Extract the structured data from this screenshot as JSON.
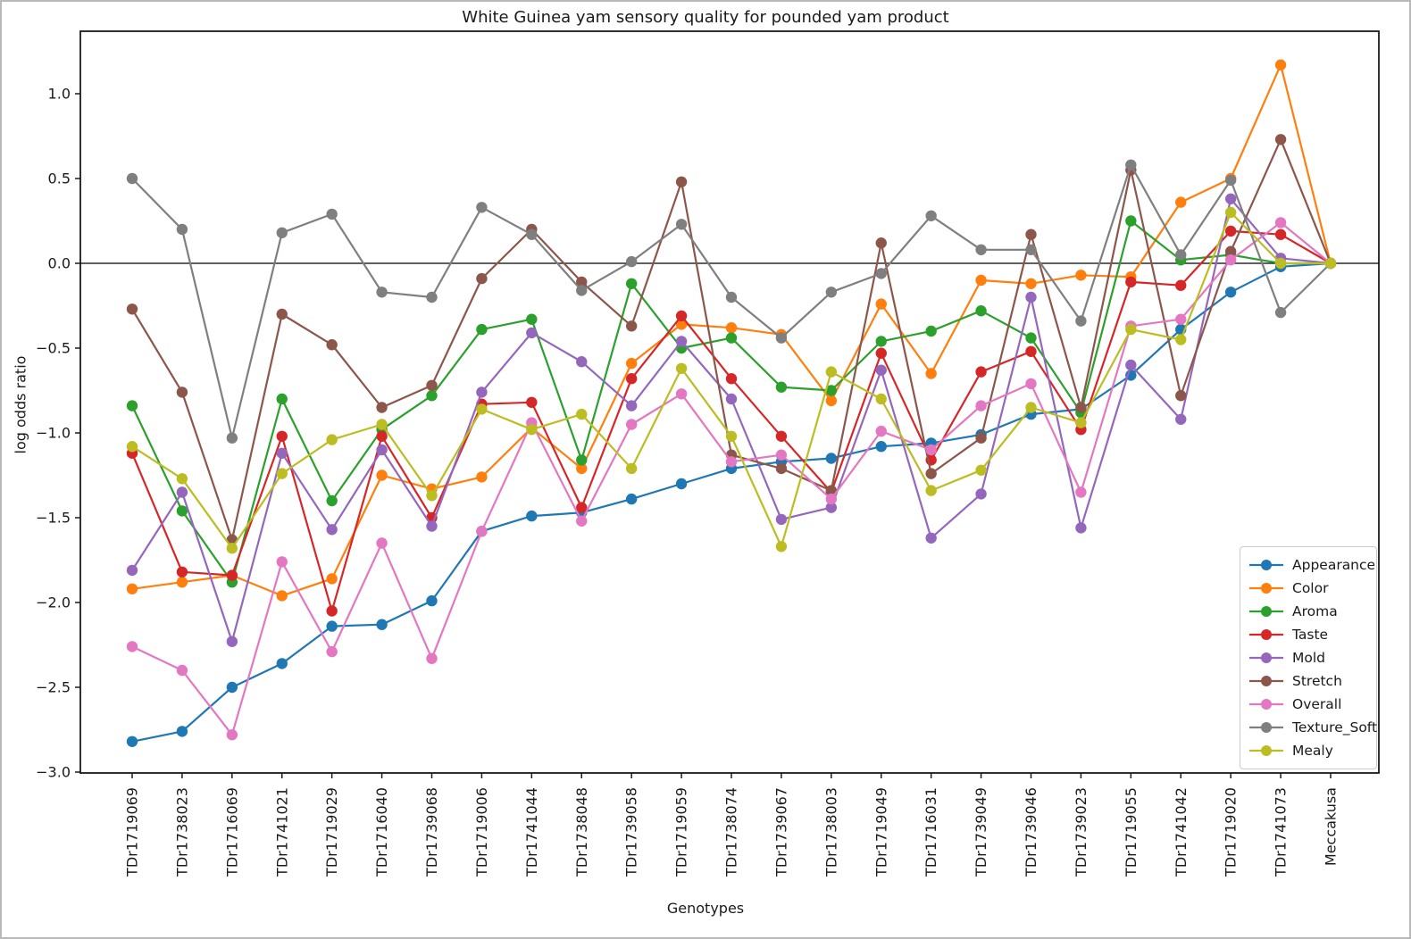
{
  "chart_data": {
    "type": "line",
    "title": "White Guinea yam sensory quality for pounded yam product",
    "xlabel": "Genotypes",
    "ylabel": "log odds ratio",
    "ylim": [
      -3.0,
      1.37
    ],
    "grid": false,
    "zero_line": true,
    "legend_position": "lower right",
    "ytick_labels": [
      "1.0",
      "0.5",
      "0.0",
      "−0.5",
      "−1.0",
      "−1.5",
      "−2.0",
      "−2.5",
      "−3.0"
    ],
    "yticks": [
      1.0,
      0.5,
      0.0,
      -0.5,
      -1.0,
      -1.5,
      -2.0,
      -2.5,
      -3.0
    ],
    "categories": [
      "TDr1719069",
      "TDr1738023",
      "TDr1716069",
      "TDr1741021",
      "TDr1719029",
      "TDr1716040",
      "TDr1739068",
      "TDr1719006",
      "TDr1741044",
      "TDr1738048",
      "TDr1739058",
      "TDr1719059",
      "TDr1738074",
      "TDr1739067",
      "TDr1738003",
      "TDr1719049",
      "TDr1716031",
      "TDr1739049",
      "TDr1739046",
      "TDr1739023",
      "TDr1719055",
      "TDr1741042",
      "TDr1719020",
      "TDr1741073",
      "Meccakusa"
    ],
    "series": [
      {
        "name": "Appearance",
        "color": "#1f77b4",
        "values": [
          -2.82,
          -2.76,
          -2.5,
          -2.36,
          -2.14,
          -2.13,
          -1.99,
          -1.58,
          -1.49,
          -1.47,
          -1.39,
          -1.3,
          -1.21,
          -1.17,
          -1.15,
          -1.08,
          -1.06,
          -1.01,
          -0.89,
          -0.86,
          -0.66,
          -0.39,
          -0.17,
          -0.02,
          0.0
        ]
      },
      {
        "name": "Color",
        "color": "#ff7f0e",
        "values": [
          -1.92,
          -1.88,
          -1.84,
          -1.96,
          -1.86,
          -1.25,
          -1.33,
          -1.26,
          -0.97,
          -1.21,
          -0.59,
          -0.36,
          -0.38,
          -0.42,
          -0.81,
          -0.24,
          -0.65,
          -0.1,
          -0.12,
          -0.07,
          -0.08,
          0.36,
          0.5,
          1.17,
          0.0
        ]
      },
      {
        "name": "Aroma",
        "color": "#2ca02c",
        "values": [
          -0.84,
          -1.46,
          -1.88,
          -0.8,
          -1.4,
          -0.98,
          -0.78,
          -0.39,
          -0.33,
          -1.16,
          -0.12,
          -0.5,
          -0.44,
          -0.73,
          -0.75,
          -0.46,
          -0.4,
          -0.28,
          -0.44,
          -0.88,
          0.25,
          0.02,
          0.05,
          0.0,
          0.0
        ]
      },
      {
        "name": "Taste",
        "color": "#d62728",
        "values": [
          -1.12,
          -1.82,
          -1.84,
          -1.02,
          -2.05,
          -1.02,
          -1.5,
          -0.83,
          -0.82,
          -1.44,
          -0.68,
          -0.31,
          -0.68,
          -1.02,
          -1.35,
          -0.53,
          -1.16,
          -0.64,
          -0.52,
          -0.98,
          -0.11,
          -0.13,
          0.19,
          0.17,
          0.0
        ]
      },
      {
        "name": "Mold",
        "color": "#9467bd",
        "values": [
          -1.81,
          -1.35,
          -2.23,
          -1.12,
          -1.57,
          -1.1,
          -1.55,
          -0.76,
          -0.41,
          -0.58,
          -0.84,
          -0.46,
          -0.8,
          -1.51,
          -1.44,
          -0.63,
          -1.62,
          -1.36,
          -0.2,
          -1.56,
          -0.6,
          -0.92,
          0.38,
          0.03,
          0.0
        ]
      },
      {
        "name": "Stretch",
        "color": "#8c564b",
        "values": [
          -0.27,
          -0.76,
          -1.63,
          -0.3,
          -0.48,
          -0.85,
          -0.72,
          -0.09,
          0.2,
          -0.11,
          -0.37,
          0.48,
          -1.13,
          -1.21,
          -1.34,
          0.12,
          -1.24,
          -1.03,
          0.17,
          -0.85,
          0.55,
          -0.78,
          0.07,
          0.73,
          0.0
        ]
      },
      {
        "name": "Overall",
        "color": "#e377c2",
        "values": [
          -2.26,
          -2.4,
          -2.78,
          -1.76,
          -2.29,
          -1.65,
          -2.33,
          -1.58,
          -0.94,
          -1.52,
          -0.95,
          -0.77,
          -1.17,
          -1.13,
          -1.39,
          -0.99,
          -1.1,
          -0.84,
          -0.71,
          -1.35,
          -0.37,
          -0.33,
          0.02,
          0.24,
          0.0
        ]
      },
      {
        "name": "Texture_Soft",
        "color": "#7f7f7f",
        "values": [
          0.5,
          0.2,
          -1.03,
          0.18,
          0.29,
          -0.17,
          -0.2,
          0.33,
          0.17,
          -0.16,
          0.01,
          0.23,
          -0.2,
          -0.44,
          -0.17,
          -0.06,
          0.28,
          0.08,
          0.08,
          -0.34,
          0.58,
          0.05,
          0.49,
          -0.29,
          0.0
        ]
      },
      {
        "name": "Mealy",
        "color": "#bcbd22",
        "values": [
          -1.08,
          -1.27,
          -1.68,
          -1.24,
          -1.04,
          -0.95,
          -1.37,
          -0.86,
          -0.98,
          -0.89,
          -1.21,
          -0.62,
          -1.02,
          -1.67,
          -0.64,
          -0.8,
          -1.34,
          -1.22,
          -0.85,
          -0.94,
          -0.39,
          -0.45,
          0.3,
          0.0,
          0.0
        ]
      }
    ]
  }
}
